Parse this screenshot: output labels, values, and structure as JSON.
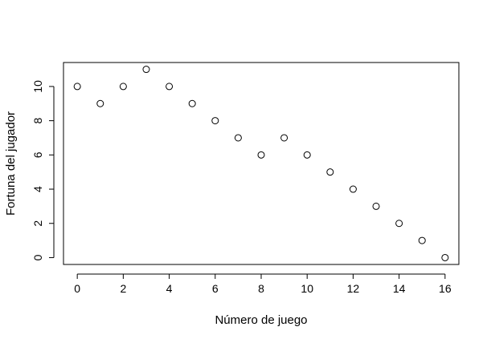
{
  "chart_data": {
    "type": "scatter",
    "title": "",
    "xlabel": "Número de juego",
    "ylabel": "Fortuna del jugador",
    "xlim": [
      -0.6,
      16.6
    ],
    "ylim": [
      -0.4,
      11.4
    ],
    "xticks": [
      "0",
      "2",
      "4",
      "6",
      "8",
      "10",
      "12",
      "14",
      "16"
    ],
    "yticks": [
      "0",
      "2",
      "4",
      "6",
      "8",
      "10"
    ],
    "grid": false,
    "marker": "open-circle",
    "series": [
      {
        "x": [
          0,
          1,
          2,
          3,
          4,
          5,
          6,
          7,
          8,
          9,
          10,
          11,
          12,
          13,
          14,
          15,
          16
        ],
        "y": [
          10,
          9,
          10,
          11,
          10,
          9,
          8,
          7,
          6,
          7,
          6,
          5,
          4,
          3,
          2,
          1,
          0
        ]
      }
    ]
  }
}
